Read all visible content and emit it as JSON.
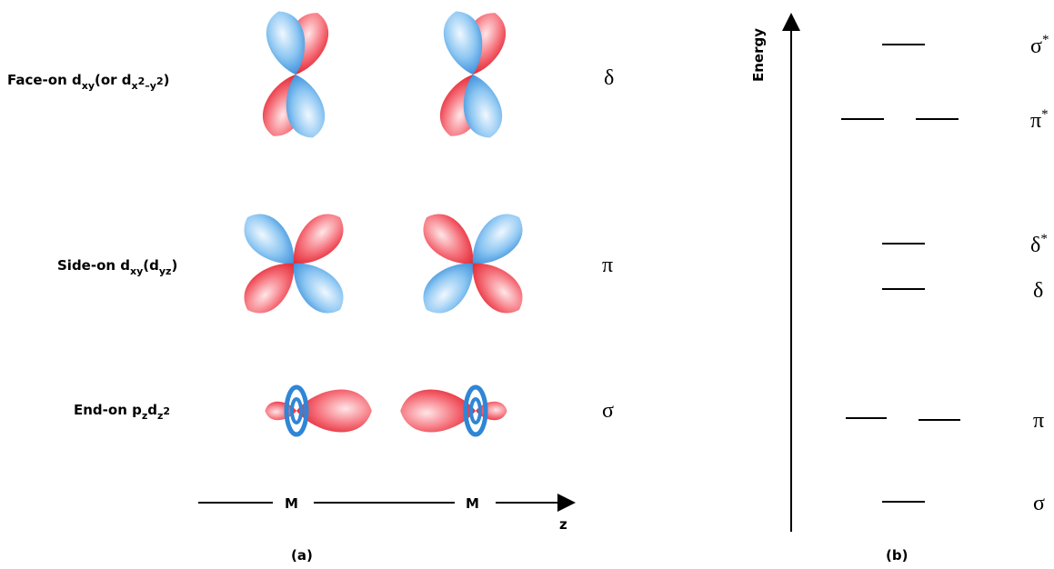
{
  "panel_a": {
    "rows": [
      {
        "label_parts": [
          "Face-on d",
          "xy",
          "(or d",
          "x",
          "2",
          "–y",
          "2",
          ")"
        ],
        "symbol": "δ"
      },
      {
        "label_parts": [
          "Side-on d",
          "xy",
          "(d",
          "yz",
          ")"
        ],
        "symbol": "π"
      },
      {
        "label_parts": [
          "End-on p",
          "z",
          "d",
          "z",
          "2"
        ],
        "symbol": "σ"
      }
    ],
    "axis": {
      "atom_left": "M",
      "atom_right": "M",
      "axis_label": "z"
    },
    "caption": "(a)"
  },
  "panel_b": {
    "axis_label": "Energy",
    "levels": [
      {
        "symbol": "σ",
        "sup": "*"
      },
      {
        "symbol": "π",
        "sup": "*"
      },
      {
        "symbol": "δ",
        "sup": "*"
      },
      {
        "symbol": "δ"
      },
      {
        "symbol": "π"
      },
      {
        "symbol": "σ"
      }
    ],
    "caption": "(b)"
  }
}
